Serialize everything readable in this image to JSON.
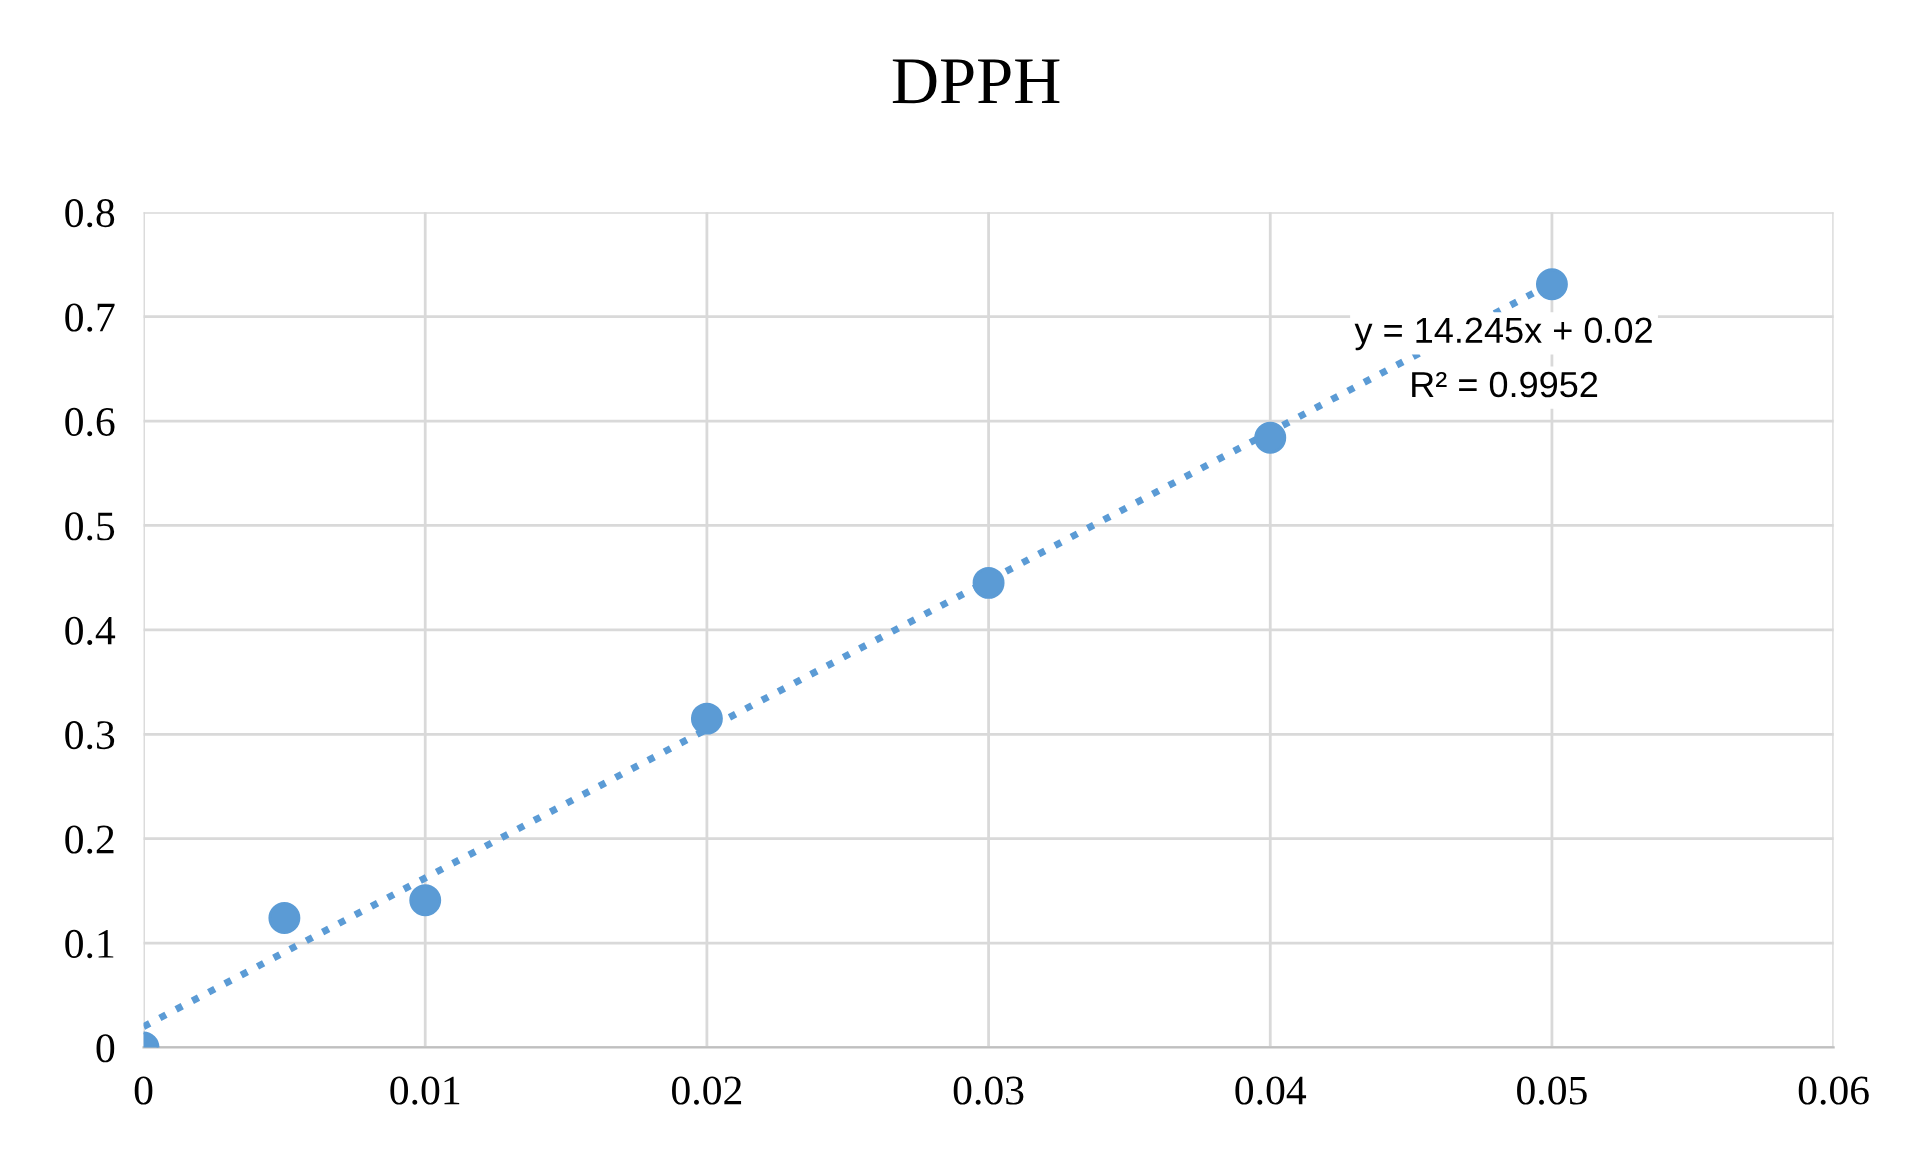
{
  "chart_data": {
    "type": "scatter",
    "title": "DPPH",
    "series": [
      {
        "color": "#5b9bd5",
        "marker": "circle",
        "x": [
          0,
          0.005,
          0.01,
          0.02,
          0.03,
          0.04,
          0.05
        ],
        "values": [
          0,
          0.124,
          0.141,
          0.315,
          0.445,
          0.584,
          0.731
        ]
      },
      {
        "type": "line",
        "color": "#5b9bd5",
        "line_style": "dotted",
        "marker": "none",
        "x": [
          0,
          0.05
        ],
        "values": [
          0.02,
          0.732
        ]
      }
    ],
    "annotations": [
      "y = 14.245x + 0.02",
      "R² = 0.9952"
    ],
    "xlim": [
      0,
      0.06
    ],
    "xticks": [
      0,
      0.01,
      0.02,
      0.03,
      0.04,
      0.05,
      0.06
    ],
    "ylim": [
      0,
      0.8
    ],
    "yticks": [
      0,
      0.1,
      0.2,
      0.3,
      0.4,
      0.5,
      0.6,
      0.7,
      0.8
    ],
    "grid": true,
    "legend": false
  }
}
